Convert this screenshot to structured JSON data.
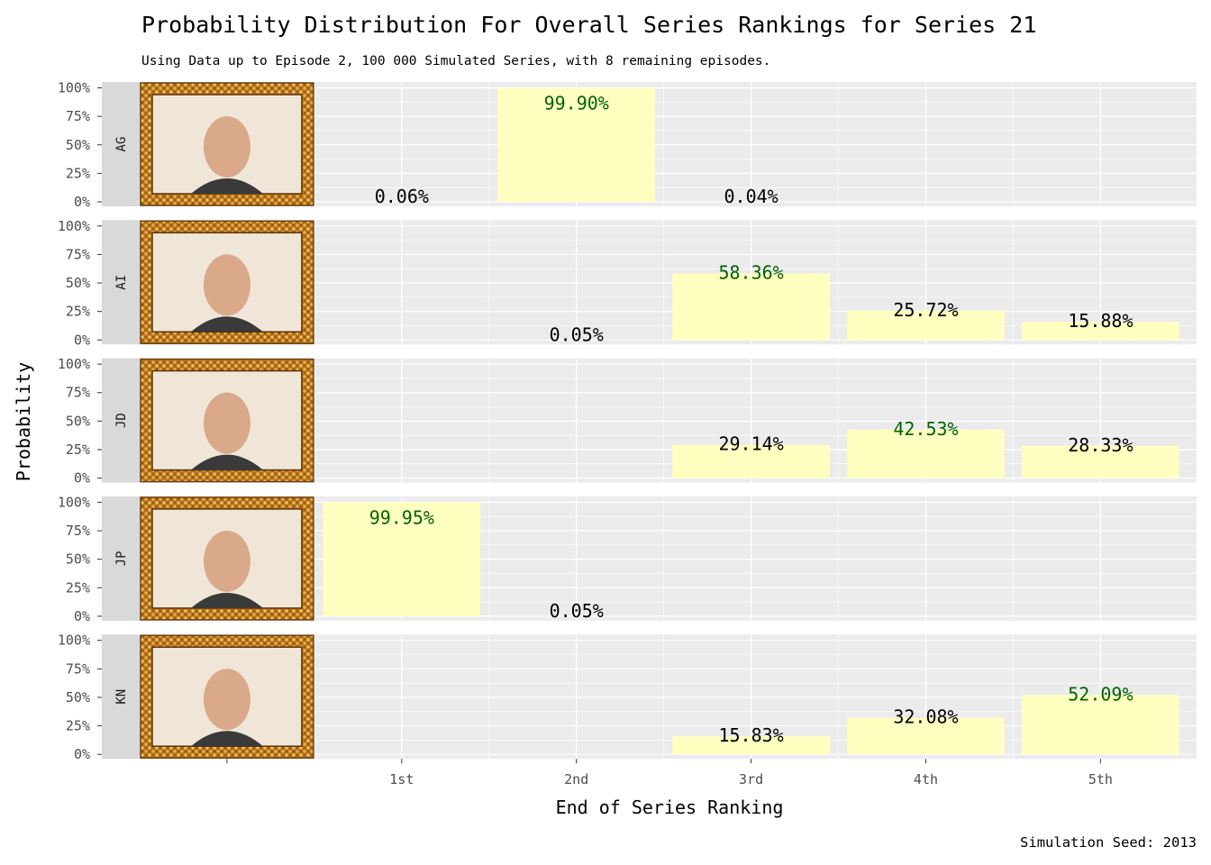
{
  "chart_data": {
    "type": "bar",
    "title": "Probability Distribution For Overall Series Rankings for Series 21",
    "subtitle": "Using Data up to Episode 2, 100 000 Simulated Series, with 8 remaining episodes.",
    "caption": "Simulation Seed: 2013",
    "xlabel": "End of Series Ranking",
    "ylabel": "Probability",
    "categories": [
      "1st",
      "2nd",
      "3rd",
      "4th",
      "5th"
    ],
    "y_ticks": [
      "0%",
      "25%",
      "50%",
      "75%",
      "100%"
    ],
    "ylim": [
      0,
      1
    ],
    "grid": true,
    "bar_color": "#ffffc0",
    "panel_color": "#ebebeb",
    "strip_color": "#d9d9d9",
    "highlight_color": "#006400",
    "facets": [
      {
        "name": "AG",
        "values": [
          0.0006,
          0.999,
          0.0004,
          0,
          0
        ],
        "labels": [
          "0.06%",
          "99.90%",
          "0.04%",
          "",
          ""
        ],
        "highlight": 1
      },
      {
        "name": "AI",
        "values": [
          0,
          0.0005,
          0.5836,
          0.2572,
          0.1588
        ],
        "labels": [
          "",
          "0.05%",
          "58.36%",
          "25.72%",
          "15.88%"
        ],
        "highlight": 2
      },
      {
        "name": "JD",
        "values": [
          0,
          0,
          0.2914,
          0.4253,
          0.2833
        ],
        "labels": [
          "",
          "",
          "29.14%",
          "42.53%",
          "28.33%"
        ],
        "highlight": 3
      },
      {
        "name": "JP",
        "values": [
          0.9995,
          0.0005,
          0,
          0,
          0
        ],
        "labels": [
          "99.95%",
          "0.05%",
          "",
          "",
          ""
        ],
        "highlight": 0
      },
      {
        "name": "KN",
        "values": [
          0,
          0,
          0.1583,
          0.3208,
          0.5209
        ],
        "labels": [
          "",
          "",
          "15.83%",
          "32.08%",
          "52.09%"
        ],
        "highlight": 4
      }
    ]
  }
}
